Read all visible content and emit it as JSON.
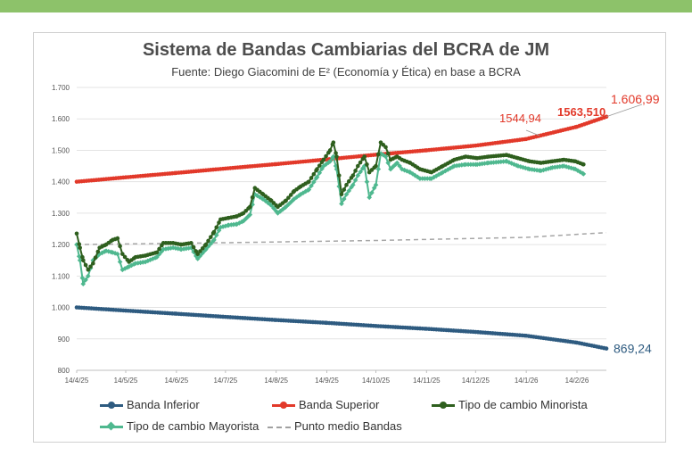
{
  "chart_data": {
    "type": "line",
    "title": "Sistema de Bandas Cambiarias del BCRA de JM",
    "subtitle": "Fuente: Diego Giacomini de E² (Economía y Ética) en base a BCRA",
    "xlabel": "",
    "ylabel": "",
    "ylim": [
      800,
      1700
    ],
    "yticks": [
      "800",
      "900",
      "1.000",
      "1.100",
      "1.200",
      "1.300",
      "1.400",
      "1.500",
      "1.600",
      "1.700"
    ],
    "ytick_values": [
      800,
      900,
      1000,
      1100,
      1200,
      1300,
      1400,
      1500,
      1600,
      1700
    ],
    "x_start": "2025-04-14",
    "x_end": "2026-03-04",
    "xticks": [
      "14/4/25",
      "14/5/25",
      "14/6/25",
      "14/7/25",
      "14/8/25",
      "14/9/25",
      "14/10/25",
      "14/11/25",
      "14/12/25",
      "14/1/26",
      "14/2/26"
    ],
    "xtick_dates": [
      "2025-04-14",
      "2025-05-14",
      "2025-06-14",
      "2025-07-14",
      "2025-08-14",
      "2025-09-14",
      "2025-10-14",
      "2025-11-14",
      "2025-12-14",
      "2026-01-14",
      "2026-02-14"
    ],
    "grid": true,
    "legend_position": "bottom",
    "series": [
      {
        "name": "Banda Inferior",
        "color": "#2e5b80",
        "marker": "circle",
        "points": [
          [
            "2025-04-14",
            1000
          ],
          [
            "2025-05-14",
            990
          ],
          [
            "2025-06-14",
            980
          ],
          [
            "2025-07-14",
            970
          ],
          [
            "2025-08-14",
            960
          ],
          [
            "2025-09-14",
            951
          ],
          [
            "2025-10-14",
            941
          ],
          [
            "2025-11-14",
            932
          ],
          [
            "2025-12-14",
            922
          ],
          [
            "2026-01-14",
            910
          ],
          [
            "2026-02-14",
            888
          ],
          [
            "2026-03-04",
            869.24
          ]
        ]
      },
      {
        "name": "Banda Superior",
        "color": "#e2392a",
        "marker": "circle",
        "points": [
          [
            "2025-04-14",
            1400
          ],
          [
            "2025-05-14",
            1414
          ],
          [
            "2025-06-14",
            1428
          ],
          [
            "2025-07-14",
            1442
          ],
          [
            "2025-08-14",
            1456
          ],
          [
            "2025-09-14",
            1471
          ],
          [
            "2025-10-14",
            1486
          ],
          [
            "2025-11-14",
            1500
          ],
          [
            "2025-12-14",
            1515
          ],
          [
            "2026-01-14",
            1536
          ],
          [
            "2026-02-14",
            1575
          ],
          [
            "2026-03-04",
            1606.99
          ]
        ]
      },
      {
        "name": "Tipo de cambio Minorista",
        "color": "#2e5f1e",
        "marker": "circle",
        "points": [
          [
            "2025-04-14",
            1235
          ],
          [
            "2025-04-16",
            1190
          ],
          [
            "2025-04-18",
            1150
          ],
          [
            "2025-04-21",
            1120
          ],
          [
            "2025-04-24",
            1140
          ],
          [
            "2025-04-28",
            1190
          ],
          [
            "2025-05-02",
            1200
          ],
          [
            "2025-05-06",
            1215
          ],
          [
            "2025-05-09",
            1220
          ],
          [
            "2025-05-12",
            1170
          ],
          [
            "2025-05-16",
            1145
          ],
          [
            "2025-05-20",
            1160
          ],
          [
            "2025-05-26",
            1165
          ],
          [
            "2025-06-02",
            1175
          ],
          [
            "2025-06-06",
            1205
          ],
          [
            "2025-06-12",
            1205
          ],
          [
            "2025-06-17",
            1200
          ],
          [
            "2025-06-23",
            1205
          ],
          [
            "2025-06-27",
            1170
          ],
          [
            "2025-07-02",
            1200
          ],
          [
            "2025-07-07",
            1240
          ],
          [
            "2025-07-11",
            1280
          ],
          [
            "2025-07-16",
            1285
          ],
          [
            "2025-07-21",
            1290
          ],
          [
            "2025-07-25",
            1300
          ],
          [
            "2025-07-29",
            1320
          ],
          [
            "2025-08-01",
            1380
          ],
          [
            "2025-08-06",
            1360
          ],
          [
            "2025-08-11",
            1340
          ],
          [
            "2025-08-15",
            1320
          ],
          [
            "2025-08-20",
            1340
          ],
          [
            "2025-08-25",
            1370
          ],
          [
            "2025-08-29",
            1385
          ],
          [
            "2025-09-03",
            1400
          ],
          [
            "2025-09-08",
            1440
          ],
          [
            "2025-09-12",
            1470
          ],
          [
            "2025-09-16",
            1500
          ],
          [
            "2025-09-18",
            1525
          ],
          [
            "2025-09-20",
            1480
          ],
          [
            "2025-09-23",
            1360
          ],
          [
            "2025-09-26",
            1390
          ],
          [
            "2025-09-30",
            1420
          ],
          [
            "2025-10-03",
            1450
          ],
          [
            "2025-10-07",
            1480
          ],
          [
            "2025-10-10",
            1430
          ],
          [
            "2025-10-14",
            1450
          ],
          [
            "2025-10-17",
            1525
          ],
          [
            "2025-10-20",
            1510
          ],
          [
            "2025-10-23",
            1470
          ],
          [
            "2025-10-27",
            1480
          ],
          [
            "2025-10-30",
            1470
          ],
          [
            "2025-11-04",
            1460
          ],
          [
            "2025-11-10",
            1440
          ],
          [
            "2025-11-17",
            1430
          ],
          [
            "2025-11-24",
            1450
          ],
          [
            "2025-12-01",
            1470
          ],
          [
            "2025-12-08",
            1480
          ],
          [
            "2025-12-15",
            1475
          ],
          [
            "2025-12-22",
            1480
          ],
          [
            "2026-01-02",
            1485
          ],
          [
            "2026-01-09",
            1475
          ],
          [
            "2026-01-16",
            1465
          ],
          [
            "2026-01-23",
            1460
          ],
          [
            "2026-01-30",
            1465
          ],
          [
            "2026-02-06",
            1470
          ],
          [
            "2026-02-13",
            1465
          ],
          [
            "2026-02-18",
            1455
          ]
        ]
      },
      {
        "name": "Tipo de cambio Mayorista",
        "color": "#4fb88f",
        "marker": "diamond",
        "points": [
          [
            "2025-04-14",
            1200
          ],
          [
            "2025-04-16",
            1150
          ],
          [
            "2025-04-18",
            1075
          ],
          [
            "2025-04-21",
            1100
          ],
          [
            "2025-04-24",
            1150
          ],
          [
            "2025-04-28",
            1170
          ],
          [
            "2025-05-02",
            1180
          ],
          [
            "2025-05-06",
            1175
          ],
          [
            "2025-05-09",
            1170
          ],
          [
            "2025-05-12",
            1120
          ],
          [
            "2025-05-16",
            1130
          ],
          [
            "2025-05-20",
            1140
          ],
          [
            "2025-05-26",
            1145
          ],
          [
            "2025-06-02",
            1160
          ],
          [
            "2025-06-06",
            1185
          ],
          [
            "2025-06-12",
            1190
          ],
          [
            "2025-06-17",
            1185
          ],
          [
            "2025-06-23",
            1190
          ],
          [
            "2025-06-27",
            1155
          ],
          [
            "2025-07-02",
            1185
          ],
          [
            "2025-07-07",
            1215
          ],
          [
            "2025-07-11",
            1255
          ],
          [
            "2025-07-16",
            1262
          ],
          [
            "2025-07-21",
            1265
          ],
          [
            "2025-07-25",
            1275
          ],
          [
            "2025-07-29",
            1295
          ],
          [
            "2025-08-01",
            1360
          ],
          [
            "2025-08-06",
            1345
          ],
          [
            "2025-08-11",
            1325
          ],
          [
            "2025-08-15",
            1300
          ],
          [
            "2025-08-20",
            1320
          ],
          [
            "2025-08-25",
            1345
          ],
          [
            "2025-08-29",
            1360
          ],
          [
            "2025-09-03",
            1375
          ],
          [
            "2025-09-08",
            1415
          ],
          [
            "2025-09-12",
            1450
          ],
          [
            "2025-09-16",
            1465
          ],
          [
            "2025-09-18",
            1480
          ],
          [
            "2025-09-20",
            1440
          ],
          [
            "2025-09-23",
            1330
          ],
          [
            "2025-09-26",
            1360
          ],
          [
            "2025-09-30",
            1390
          ],
          [
            "2025-10-03",
            1420
          ],
          [
            "2025-10-07",
            1450
          ],
          [
            "2025-10-10",
            1350
          ],
          [
            "2025-10-14",
            1390
          ],
          [
            "2025-10-17",
            1490
          ],
          [
            "2025-10-20",
            1480
          ],
          [
            "2025-10-23",
            1440
          ],
          [
            "2025-10-27",
            1460
          ],
          [
            "2025-10-30",
            1440
          ],
          [
            "2025-11-04",
            1430
          ],
          [
            "2025-11-10",
            1410
          ],
          [
            "2025-11-17",
            1410
          ],
          [
            "2025-11-24",
            1430
          ],
          [
            "2025-12-01",
            1450
          ],
          [
            "2025-12-08",
            1455
          ],
          [
            "2025-12-15",
            1455
          ],
          [
            "2025-12-22",
            1460
          ],
          [
            "2026-01-02",
            1465
          ],
          [
            "2026-01-09",
            1450
          ],
          [
            "2026-01-16",
            1440
          ],
          [
            "2026-01-23",
            1435
          ],
          [
            "2026-01-30",
            1445
          ],
          [
            "2026-02-06",
            1450
          ],
          [
            "2026-02-13",
            1440
          ],
          [
            "2026-02-18",
            1425
          ]
        ]
      },
      {
        "name": "Punto medio Bandas",
        "color": "#a6a6a6",
        "dashed": true,
        "marker": "none",
        "points": [
          [
            "2025-04-14",
            1200
          ],
          [
            "2025-07-14",
            1206
          ],
          [
            "2025-10-14",
            1213
          ],
          [
            "2026-01-14",
            1223
          ],
          [
            "2026-03-04",
            1238
          ]
        ]
      }
    ],
    "annotations": [
      {
        "text": "1544,94",
        "color": "#e2392a",
        "bold": false
      },
      {
        "text": "1563,510",
        "color": "#e2392a",
        "bold": true
      },
      {
        "text": "1.606,99",
        "color": "#e2392a",
        "bold": false
      },
      {
        "text": "869,24",
        "color": "#2e5b80",
        "bold": false
      }
    ]
  }
}
